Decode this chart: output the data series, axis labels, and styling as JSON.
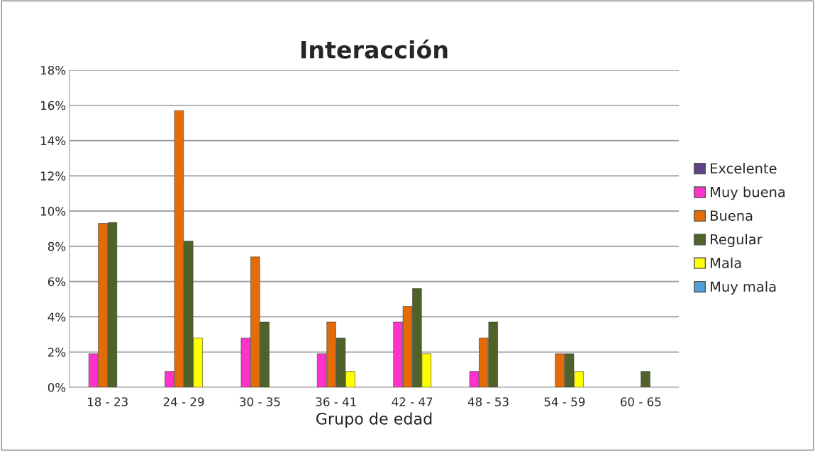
{
  "chart_data": {
    "type": "bar",
    "title": "Interacción",
    "xlabel": "Grupo de edad",
    "categories": [
      "18 - 23",
      "24 - 29",
      "30 - 35",
      "36 - 41",
      "42 - 47",
      "48 - 53",
      "54 - 59",
      "60 - 65"
    ],
    "series": [
      {
        "name": "Excelente",
        "color": "#5c4387",
        "values": [
          null,
          null,
          null,
          null,
          null,
          null,
          null,
          null
        ]
      },
      {
        "name": "Muy buena",
        "color": "#ff33cc",
        "values": [
          1.9,
          0.9,
          2.8,
          1.9,
          3.7,
          0.9,
          null,
          null
        ]
      },
      {
        "name": "Buena",
        "color": "#e36c09",
        "values": [
          9.3,
          15.7,
          7.4,
          3.7,
          4.6,
          2.8,
          1.9,
          null
        ]
      },
      {
        "name": "Regular",
        "color": "#4f6228",
        "values": [
          9.35,
          8.3,
          3.7,
          2.8,
          5.6,
          3.7,
          1.9,
          0.9
        ]
      },
      {
        "name": "Mala",
        "color": "#ffff00",
        "values": [
          null,
          2.8,
          null,
          0.9,
          1.9,
          null,
          0.9,
          null
        ]
      },
      {
        "name": "Muy mala",
        "color": "#4f9fd8",
        "values": [
          null,
          null,
          null,
          null,
          null,
          null,
          null,
          null
        ]
      }
    ],
    "ylim": [
      0,
      18
    ],
    "yticks": [
      {
        "value": 0,
        "label": "0%"
      },
      {
        "value": 2,
        "label": "2%"
      },
      {
        "value": 4,
        "label": "4%"
      },
      {
        "value": 6,
        "label": "6%"
      },
      {
        "value": 8,
        "label": "8%"
      },
      {
        "value": 10,
        "label": "10%"
      },
      {
        "value": 12,
        "label": "12%"
      },
      {
        "value": 14,
        "label": "14%"
      },
      {
        "value": 16,
        "label": "16%"
      },
      {
        "value": 18,
        "label": "18%"
      }
    ],
    "grid": "y",
    "legend": "right"
  }
}
